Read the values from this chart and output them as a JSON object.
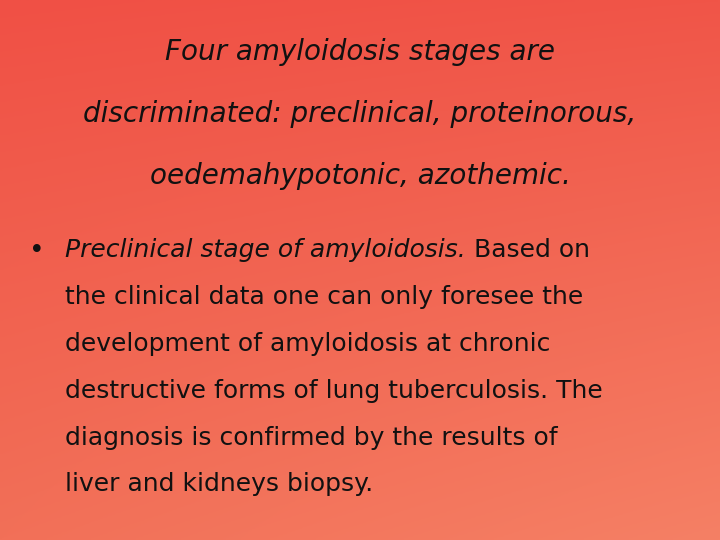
{
  "title_line1": "Four amyloidosis stages are",
  "title_line2": "discriminated: preclinical, proteinorous,",
  "title_line3": "oedemahypotonic, azothemic.",
  "bullet_italic": "Preclinical stage of amyloidosis.",
  "bullet_regular_lines": [
    " Based on",
    "the clinical data one can only foresee the",
    "development of amyloidosis at chronic",
    "destructive forms of lung tuberculosis. The",
    "diagnosis is confirmed by the results of",
    "liver and kidneys biopsy."
  ],
  "bg_top": "#f05045",
  "bg_bottom": "#f06050",
  "text_color": "#111111",
  "title_fontsize": 20,
  "body_fontsize": 18,
  "figsize": [
    7.2,
    5.4
  ],
  "dpi": 100
}
